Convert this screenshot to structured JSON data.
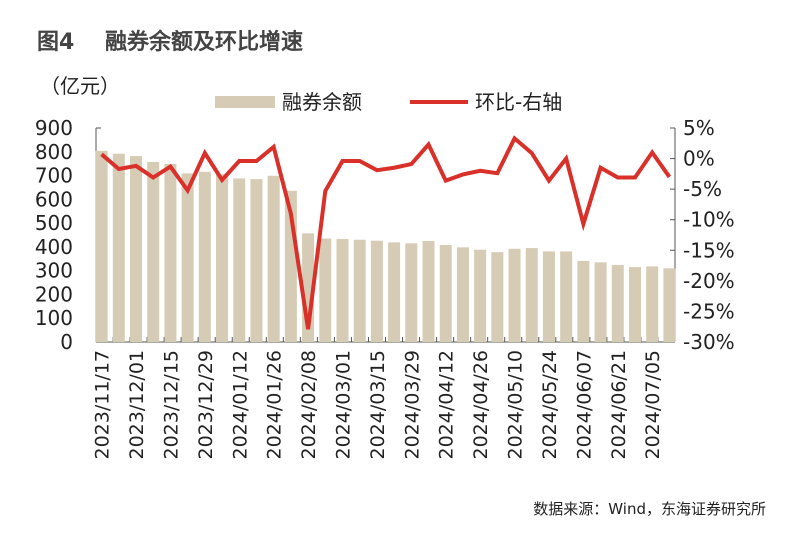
{
  "chart_data": {
    "type": "bar+line",
    "title": "图4    融券余额及环比增速",
    "unit_label": "（亿元）",
    "categories": [
      "2023/11/17",
      "",
      "2023/12/01",
      "",
      "2023/12/15",
      "",
      "2023/12/29",
      "",
      "2024/01/12",
      "",
      "2024/01/26",
      "",
      "2024/02/08",
      "",
      "2024/03/01",
      "",
      "2024/03/15",
      "",
      "2024/03/29",
      "",
      "2024/04/12",
      "",
      "2024/04/26",
      "",
      "2024/05/10",
      "",
      "2024/05/24",
      "",
      "2024/06/07",
      "",
      "2024/06/21",
      "",
      "2024/07/05",
      ""
    ],
    "series": [
      {
        "name": "融券余额",
        "type": "bar",
        "axis": "left",
        "color": "#d6cbb5",
        "values": [
          804,
          792,
          782,
          757,
          749,
          709,
          716,
          705,
          688,
          685,
          699,
          636,
          457,
          435,
          433,
          430,
          426,
          419,
          415,
          425,
          408,
          398,
          388,
          378,
          392,
          395,
          381,
          381,
          341,
          335,
          324,
          315,
          318,
          310
        ]
      },
      {
        "name": "环比-右轴",
        "type": "line",
        "axis": "right",
        "color": "#d9302a",
        "values": [
          0.7,
          -1.7,
          -1.2,
          -3.1,
          -1.3,
          -5.2,
          0.9,
          -3.5,
          -0.4,
          -0.4,
          1.9,
          -9.0,
          -27.9,
          -5.3,
          -0.4,
          -0.4,
          -1.9,
          -1.5,
          -0.9,
          2.3,
          -3.6,
          -2.6,
          -2.0,
          -2.4,
          3.3,
          0.9,
          -3.6,
          0.0,
          -10.7,
          -1.5,
          -3.1,
          -3.1,
          1.0,
          -3.0
        ]
      }
    ],
    "left_axis": {
      "ylim": [
        0,
        900
      ],
      "ticks": [
        "0",
        "100",
        "200",
        "300",
        "400",
        "500",
        "600",
        "700",
        "800",
        "900"
      ]
    },
    "right_axis": {
      "ylim": [
        -30,
        5
      ],
      "ticks": [
        "-30%",
        "-25%",
        "-20%",
        "-15%",
        "-10%",
        "-5%",
        "0%",
        "5%"
      ]
    },
    "grid": false,
    "legend_placement": "top"
  },
  "source": "数据来源：Wind，东海证券研究所"
}
